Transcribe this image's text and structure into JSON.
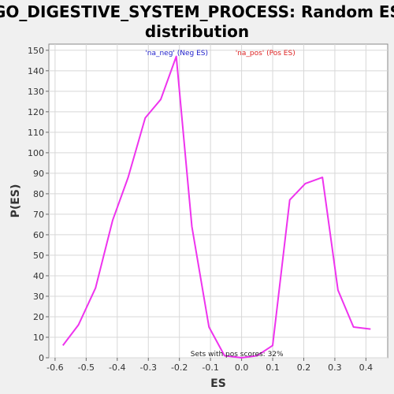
{
  "chart_data": {
    "type": "line",
    "title_line1": "GO_DIGESTIVE_SYSTEM_PROCESS: Random ES",
    "title_line2": "distribution",
    "xlabel": "ES",
    "ylabel": "P(ES)",
    "xlim": [
      -0.62,
      0.47
    ],
    "ylim": [
      0,
      153
    ],
    "x_ticks": [
      -0.6,
      -0.5,
      -0.4,
      -0.3,
      -0.2,
      -0.1,
      0.0,
      0.1,
      0.2,
      0.3,
      0.4
    ],
    "x_tick_labels": [
      "-0.6",
      "-0.5",
      "-0.4",
      "-0.3",
      "-0.2",
      "-0.1",
      "0.0",
      "0.1",
      "0.2",
      "0.3",
      "0.4"
    ],
    "y_ticks": [
      0,
      10,
      20,
      30,
      40,
      50,
      60,
      70,
      80,
      90,
      100,
      110,
      120,
      130,
      140,
      150
    ],
    "y_tick_labels": [
      "0",
      "10",
      "20",
      "30",
      "40",
      "50",
      "60",
      "70",
      "80",
      "90",
      "100",
      "110",
      "120",
      "130",
      "140",
      "150"
    ],
    "legend": [
      {
        "label": "'na_neg' (Neg ES)",
        "color": "#2222cc"
      },
      {
        "label": "'na_pos' (Pos ES)",
        "color": "#dd2222"
      }
    ],
    "annotation": "Sets with pos scores: 32%",
    "background": "#ffffff",
    "line_color": "#ee33ee",
    "grid": true,
    "series": [
      {
        "x": [
          -0.575,
          -0.525,
          -0.47,
          -0.415,
          -0.365,
          -0.31,
          -0.26,
          -0.21,
          -0.16,
          -0.105,
          -0.055,
          0.0,
          0.05,
          0.1,
          0.155,
          0.205,
          0.26,
          0.31,
          0.36,
          0.415
        ],
        "y": [
          6,
          16,
          34,
          67,
          88,
          117,
          126,
          147,
          64,
          15,
          1,
          0,
          1,
          6,
          77,
          85,
          88,
          33,
          15,
          14
        ]
      }
    ]
  }
}
